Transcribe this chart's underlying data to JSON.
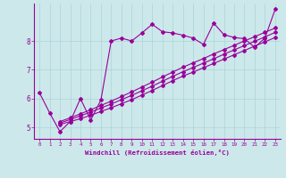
{
  "xlabel": "Windchill (Refroidissement éolien,°C)",
  "bg_color": "#cce8ea",
  "line_color": "#990099",
  "grid_color": "#aad4d8",
  "xlim": [
    -0.5,
    23.5
  ],
  "ylim": [
    4.6,
    9.3
  ],
  "yticks": [
    5,
    6,
    7,
    8
  ],
  "xticks": [
    0,
    1,
    2,
    3,
    4,
    5,
    6,
    7,
    8,
    9,
    10,
    11,
    12,
    13,
    14,
    15,
    16,
    17,
    18,
    19,
    20,
    21,
    22,
    23
  ],
  "line1_x": [
    0,
    1,
    2,
    3,
    4,
    5,
    6,
    7,
    8,
    9,
    10,
    11,
    12,
    13,
    14,
    15,
    16,
    17,
    18,
    19,
    20,
    21,
    22,
    23
  ],
  "line1_y": [
    6.2,
    5.5,
    4.85,
    5.2,
    6.0,
    5.25,
    5.95,
    8.0,
    8.1,
    8.0,
    8.28,
    8.58,
    8.32,
    8.28,
    8.2,
    8.1,
    7.88,
    8.62,
    8.22,
    8.12,
    8.08,
    7.78,
    8.1,
    9.1
  ],
  "line2_x": [
    2,
    3,
    4,
    5,
    6,
    7,
    8,
    9,
    10,
    11,
    12,
    13,
    14,
    15,
    16,
    17,
    18,
    19,
    20,
    21,
    22,
    23
  ],
  "line2_y": [
    5.1,
    5.2,
    5.3,
    5.42,
    5.55,
    5.68,
    5.82,
    5.96,
    6.12,
    6.28,
    6.45,
    6.62,
    6.78,
    6.92,
    7.07,
    7.22,
    7.37,
    7.52,
    7.67,
    7.82,
    7.97,
    8.12
  ],
  "line3_x": [
    2,
    3,
    4,
    5,
    6,
    7,
    8,
    9,
    10,
    11,
    12,
    13,
    14,
    15,
    16,
    17,
    18,
    19,
    20,
    21,
    22,
    23
  ],
  "line3_y": [
    5.15,
    5.27,
    5.4,
    5.53,
    5.67,
    5.81,
    5.96,
    6.11,
    6.27,
    6.43,
    6.6,
    6.77,
    6.93,
    7.08,
    7.23,
    7.38,
    7.54,
    7.69,
    7.84,
    7.99,
    8.14,
    8.3
  ],
  "line4_x": [
    2,
    3,
    4,
    5,
    6,
    7,
    8,
    9,
    10,
    11,
    12,
    13,
    14,
    15,
    16,
    17,
    18,
    19,
    20,
    21,
    22,
    23
  ],
  "line4_y": [
    5.2,
    5.33,
    5.47,
    5.61,
    5.76,
    5.91,
    6.07,
    6.23,
    6.4,
    6.57,
    6.75,
    6.92,
    7.09,
    7.24,
    7.39,
    7.55,
    7.7,
    7.85,
    8.0,
    8.15,
    8.3,
    8.45
  ],
  "marker": "D",
  "marker_size": 2.0,
  "linewidth": 0.8
}
